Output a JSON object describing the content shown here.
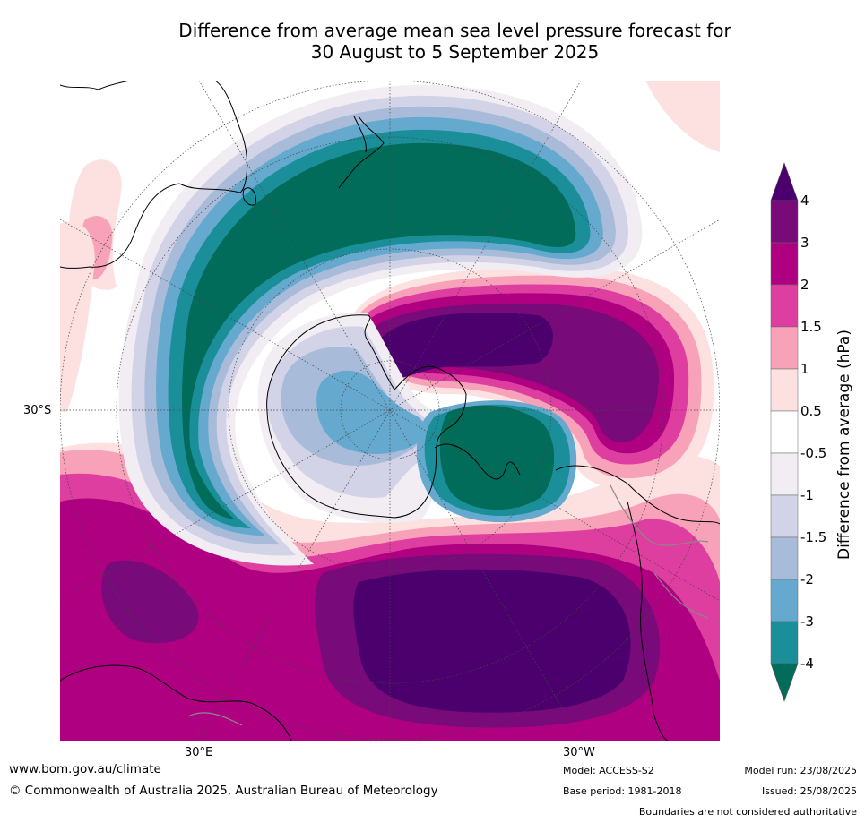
{
  "title": {
    "line1": "Difference from average mean sea level pressure forecast for",
    "line2": "30 August to 5 September 2025"
  },
  "map": {
    "lat_label": "30°S",
    "lon_label_left": "30°E",
    "lon_label_right": "30°W"
  },
  "colorbar": {
    "label": "Difference from average (hPa)",
    "ticks": [
      "4",
      "3",
      "2",
      "1.5",
      "1",
      "0.5",
      "-0.5",
      "-1",
      "-1.5",
      "-2",
      "-3",
      "-4"
    ],
    "colors": {
      "above_4": "#4b006e",
      "3_to_4": "#780a7a",
      "2_to_3": "#b00082",
      "1.5_to_2": "#de3e9f",
      "1_to_1.5": "#f7a2b8",
      "0.5_to_1": "#fde0e0",
      "-0.5_to_0.5": "#ffffff",
      "-1_to_-0.5": "#f1edf3",
      "-1.5_to_-1": "#d2d3e7",
      "-2_to_-1.5": "#a8bcd9",
      "-3_to_-2": "#66a9cf",
      "-4_to_-3": "#1a8f99",
      "below_-4": "#016c59"
    }
  },
  "footer": {
    "website": "www.bom.gov.au/climate",
    "copyright": "© Commonwealth of Australia 2025, Australian Bureau of Meteorology",
    "model": "Model: ACCESS-S2",
    "base_period": "Base period: 1981-2018",
    "model_run": "Model run: 23/08/2025",
    "issued": "Issued: 25/08/2025",
    "disclaimer": "Boundaries are not considered authoritative"
  }
}
